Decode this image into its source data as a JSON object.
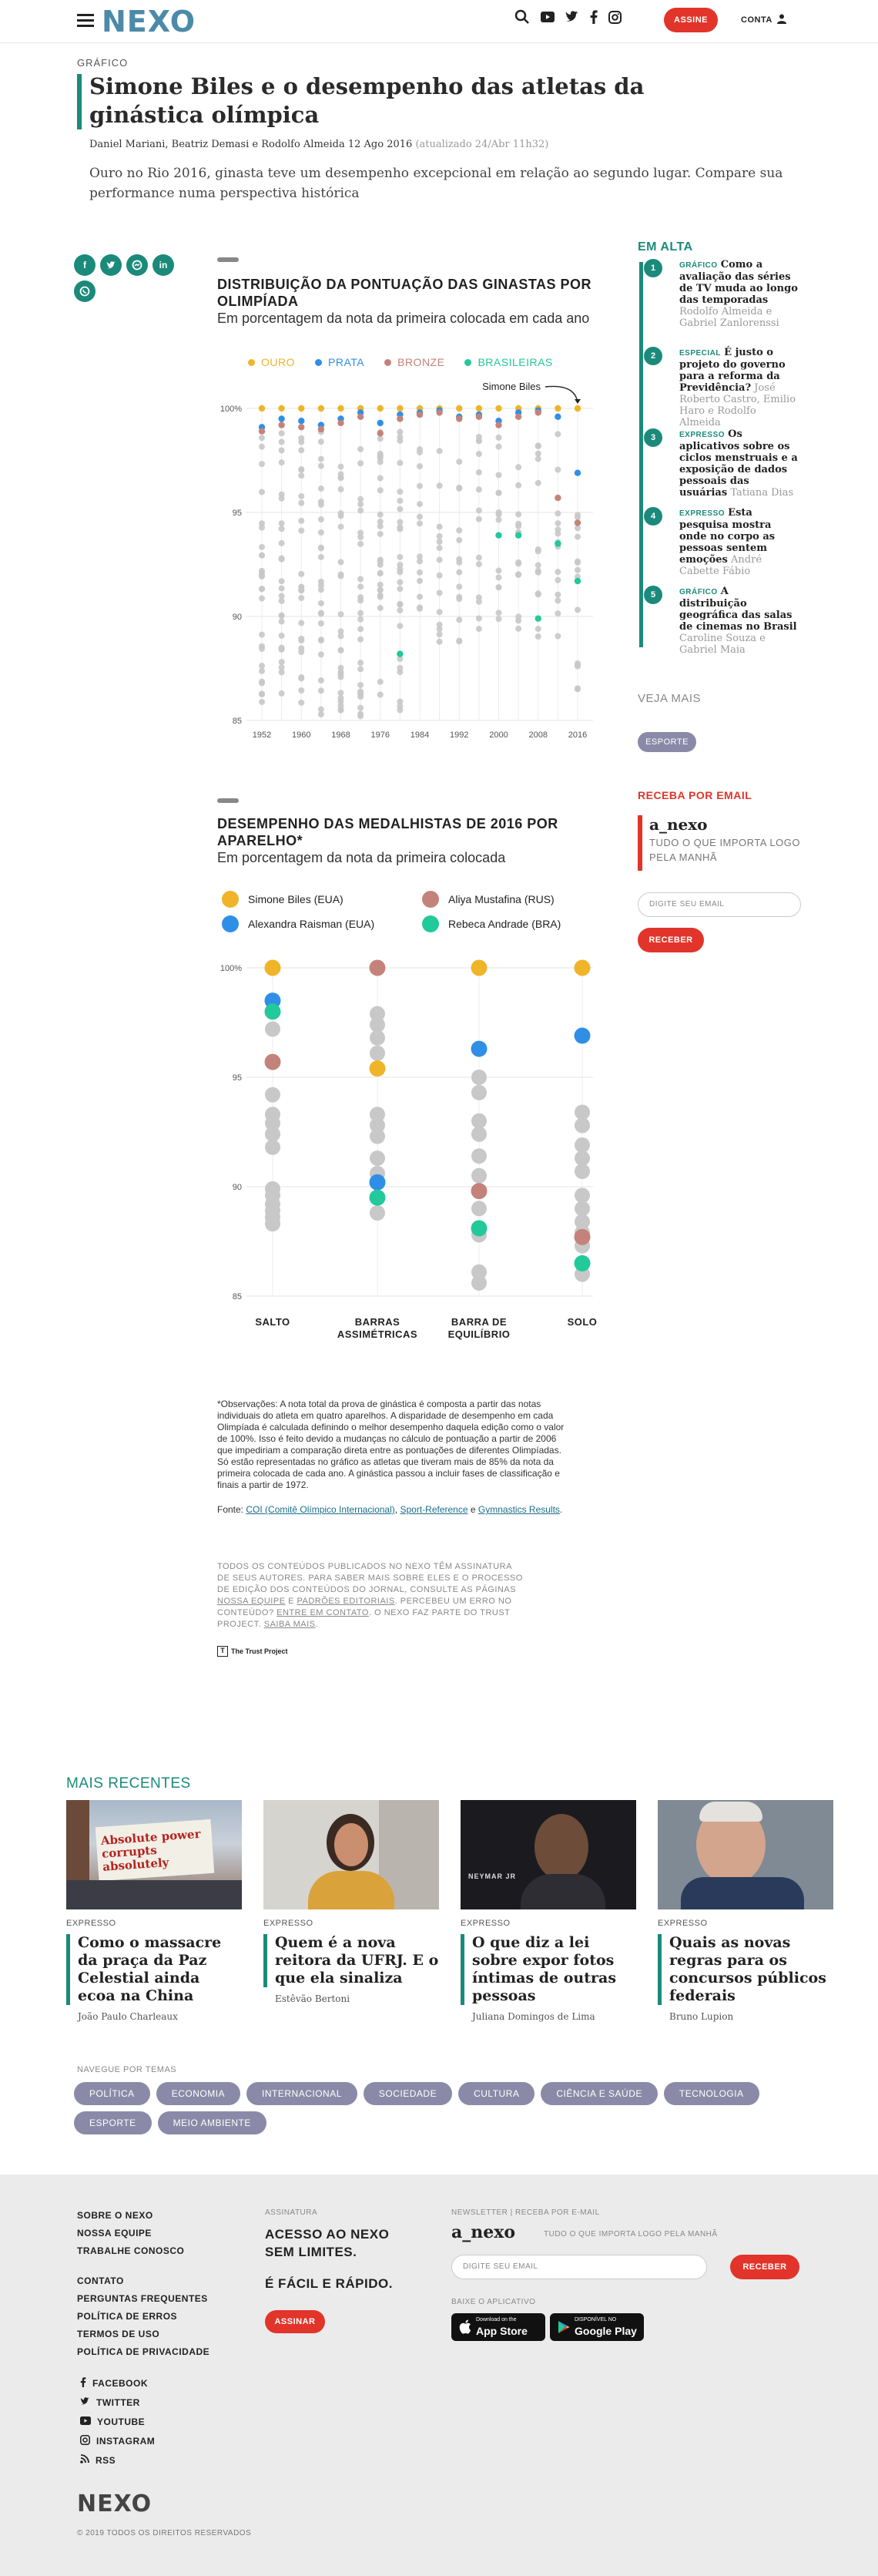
{
  "header": {
    "logo": "NEXO",
    "assine_label": "ASSINE",
    "conta_label": "CONTA",
    "icons": [
      "search-icon",
      "youtube-icon",
      "twitter-icon",
      "facebook-icon",
      "instagram-icon",
      "user-icon"
    ]
  },
  "article": {
    "kicker": "GRÁFICO",
    "title": "Simone Biles e o desempenho das atletas da ginástica olímpica",
    "authors": "Daniel Mariani, Beatriz Demasi e Rodolfo Almeida",
    "date": "12 Ago 2016",
    "updated": "(atualizado 24/Abr 11h32)",
    "lede": "Ouro no Rio 2016, ginasta teve um desempenho excepcional em relação ao segundo lugar. Compare sua performance numa perspectiva histórica"
  },
  "share": [
    "facebook-icon",
    "twitter-icon",
    "messenger-icon",
    "linkedin-icon",
    "whatsapp-icon"
  ],
  "colors": {
    "teal": "#1b8a7a",
    "red": "#e2342a",
    "ouro": "#f0b429",
    "prata": "#2f8fe6",
    "bronze": "#c4837a",
    "brasileiras": "#22c99a",
    "other": "#c8c8c8"
  },
  "chart1": {
    "title": "DISTRIBUIÇÃO DA PONTUAÇÃO DAS GINASTAS POR OLIMPÍADA",
    "subtitle": "Em porcentagem da nota da primeira colocada em cada ano",
    "legend": [
      "OURO",
      "PRATA",
      "BRONZE",
      "BRASILEIRAS"
    ],
    "annotation": "Simone Biles"
  },
  "chart2": {
    "title": "DESEMPENHO DAS MEDALHISTAS DE 2016 POR APARELHO*",
    "subtitle": "Em porcentagem da nota da primeira colocada",
    "legend": [
      "Simone Biles (EUA)",
      "Aliya Mustafina (RUS)",
      "Alexandra Raisman (EUA)",
      "Rebeca Andrade (BRA)"
    ]
  },
  "chart_data": [
    {
      "type": "scatter",
      "title": "DISTRIBUIÇÃO DA PONTUAÇÃO DAS GINASTAS POR OLIMPÍADA",
      "subtitle": "Em porcentagem da nota da primeira colocada em cada ano",
      "x": [
        1952,
        1956,
        1960,
        1964,
        1968,
        1972,
        1976,
        1980,
        1984,
        1988,
        1992,
        1996,
        2000,
        2004,
        2008,
        2012,
        2016
      ],
      "xticks": [
        1952,
        1960,
        1968,
        1976,
        1984,
        1992,
        2000,
        2008,
        2016
      ],
      "ylim": [
        85,
        100
      ],
      "yticks": [
        "85",
        "90",
        "95",
        "100%"
      ],
      "grid": true,
      "legend_position": "top",
      "series": [
        {
          "name": "OURO",
          "values": [
            100,
            100,
            100,
            100,
            100,
            100,
            100,
            100,
            100,
            100,
            100,
            100,
            100,
            100,
            100,
            100,
            100
          ]
        },
        {
          "name": "PRATA",
          "values": [
            99.1,
            99.5,
            99.4,
            99.2,
            99.5,
            99.8,
            99.3,
            99.7,
            99.8,
            99.9,
            99.6,
            99.7,
            99.4,
            99.8,
            99.9,
            99.6,
            96.9
          ]
        },
        {
          "name": "BRONZE",
          "values": [
            98.9,
            99.2,
            99.1,
            99.0,
            99.3,
            99.6,
            98.8,
            99.5,
            99.7,
            99.8,
            99.5,
            99.6,
            99.2,
            99.6,
            99.8,
            95.7,
            94.5
          ]
        },
        {
          "name": "BRASILEIRAS",
          "values": [
            null,
            null,
            null,
            null,
            null,
            null,
            null,
            88.2,
            null,
            null,
            null,
            null,
            93.9,
            93.9,
            89.9,
            93.5,
            91.7
          ]
        }
      ]
    },
    {
      "type": "scatter",
      "title": "DESEMPENHO DAS MEDALHISTAS DE 2016 POR APARELHO*",
      "subtitle": "Em porcentagem da nota da primeira colocada",
      "categories": [
        "SALTO",
        "BARRAS ASSIMÉTRICAS",
        "BARRA DE EQUILÍBRIO",
        "SOLO"
      ],
      "ylim": [
        85,
        100
      ],
      "yticks": [
        "85",
        "90",
        "95",
        "100%"
      ],
      "grid": true,
      "legend_position": "top",
      "series": [
        {
          "name": "Simone Biles (EUA)",
          "values": [
            100,
            95.4,
            100,
            100
          ]
        },
        {
          "name": "Aliya Mustafina (RUS)",
          "values": [
            95.7,
            100,
            89.8,
            87.7
          ]
        },
        {
          "name": "Alexandra Raisman (EUA)",
          "values": [
            98.5,
            90.2,
            96.3,
            96.9
          ]
        },
        {
          "name": "Rebeca Andrade (BRA)",
          "values": [
            98.0,
            89.5,
            88.1,
            86.5
          ]
        }
      ],
      "others": [
        [
          97.2,
          94.2,
          93.3,
          92.9,
          92.4,
          91.8,
          89.9,
          89.6,
          89.2,
          88.9,
          88.6,
          88.3
        ],
        [
          97.9,
          97.4,
          96.8,
          96.1,
          93.3,
          92.8,
          92.3,
          91.3,
          90.6,
          88.8
        ],
        [
          95.0,
          94.3,
          93.0,
          92.4,
          91.4,
          90.5,
          89.0,
          87.8,
          86.1,
          85.6
        ],
        [
          93.4,
          92.8,
          91.9,
          91.3,
          90.7,
          89.6,
          89.0,
          88.4,
          87.9,
          87.3,
          86.0
        ]
      ]
    }
  ],
  "notes": {
    "obs": "*Observações: A nota total da prova de ginástica é composta a partir das notas individuais do atleta em quatro aparelhos. A disparidade de desempenho em cada Olimpíada é calculada definindo o melhor desempenho daquela edição como o valor de 100%. Isso é feito devido a mudanças no cálculo de pontuação a partir de 2006 que impediriam a comparação direta entre as pontuações de diferentes Olimpíadas. Só estão representadas no gráfico as atletas que tiveram mais de 85% da nota da primeira colocada de cada ano. A ginástica passou a incluir fases de classificação e finais a partir de 1972.",
    "fonte_label": "Fonte:",
    "fonte_1": "COI (Comitê Olímpico Internacional)",
    "fonte_sep": ",",
    "fonte_2": "Sport-Reference",
    "fonte_and": "e",
    "fonte_3": "Gymnastics Results",
    "trust_1": "TODOS OS CONTEÚDOS PUBLICADOS NO NEXO TÊM ASSINATURA DE SEUS AUTORES. PARA SABER MAIS SOBRE ELES E O PROCESSO DE EDIÇÃO DOS CONTEÚDOS DO JORNAL, CONSULTE AS PÁGINAS",
    "trust_l1": "NOSSA EQUIPE",
    "trust_e": "E",
    "trust_l2": "PADRÕES EDITORIAIS",
    "trust_2": ". PERCEBEU UM ERRO NO CONTEÚDO?",
    "trust_l3": "ENTRE EM CONTATO",
    "trust_3": ". O NEXO FAZ PARTE DO TRUST PROJECT.",
    "trust_l4": "SAIBA MAIS",
    "trust_end": ".",
    "trust_logo": "The Trust Project"
  },
  "sidebar": {
    "heading": "EM ALTA",
    "items": [
      {
        "num": "1",
        "kind": "GRÁFICO",
        "title": "Como a avaliação das séries de TV muda ao longo das temporadas",
        "author": "Rodolfo Almeida e Gabriel Zanlorenssi"
      },
      {
        "num": "2",
        "kind": "ESPECIAL",
        "title": "É justo o projeto do governo para a reforma da Previdência?",
        "author": "José Roberto Castro, Emilio Haro e Rodolfo Almeida"
      },
      {
        "num": "3",
        "kind": "EXPRESSO",
        "title": "Os aplicativos sobre os ciclos menstruais e a exposição de dados pessoais das usuárias",
        "author": "Tatiana Dias"
      },
      {
        "num": "4",
        "kind": "EXPRESSO",
        "title": "Esta pesquisa mostra onde no corpo as pessoas sentem emoções",
        "author": "André Cabette Fábio"
      },
      {
        "num": "5",
        "kind": "GRÁFICO",
        "title": "A distribuição geográfica das salas de cinemas no Brasil",
        "author": "Caroline Souza e Gabriel Maia"
      }
    ],
    "veja_mais": "VEJA MAIS",
    "esporte": "ESPORTE",
    "receba_heading": "RECEBA POR EMAIL",
    "newsletter_logo": "a_nexo",
    "newsletter_tag": "TUDO O QUE IMPORTA LOGO PELA MANHÃ",
    "email_placeholder": "DIGITE SEU EMAIL",
    "receber": "RECEBER"
  },
  "mais_recentes": {
    "heading": "MAIS RECENTES",
    "cards": [
      {
        "kind": "EXPRESSO",
        "title": "Como o massacre da praça da Paz Celestial ainda ecoa na China",
        "author": "João Paulo Charleaux",
        "img_text": "Absolute power corrupts absolutely"
      },
      {
        "kind": "EXPRESSO",
        "title": "Quem é a nova reitora da UFRJ. E o que ela sinaliza",
        "author": "Estêvão Bertoni"
      },
      {
        "kind": "EXPRESSO",
        "title": "O que diz a lei sobre expor fotos íntimas de outras pessoas",
        "author": "Juliana Domingos de Lima",
        "img_text": "NEYMAR JR"
      },
      {
        "kind": "EXPRESSO",
        "title": "Quais as novas regras para os concursos públicos federais",
        "author": "Bruno Lupion"
      }
    ]
  },
  "temas": {
    "heading": "NAVEGUE POR TEMAS",
    "items": [
      "POLÍTICA",
      "ECONOMIA",
      "INTERNACIONAL",
      "SOCIEDADE",
      "CULTURA",
      "CIÊNCIA E SAÚDE",
      "TECNOLOGIA",
      "ESPORTE",
      "MEIO AMBIENTE"
    ]
  },
  "footer": {
    "links1": [
      "SOBRE O NEXO",
      "NOSSA EQUIPE",
      "TRABALHE CONOSCO"
    ],
    "links2": [
      "CONTATO",
      "PERGUNTAS FREQUENTES",
      "POLÍTICA DE ERROS",
      "TERMOS DE USO",
      "POLÍTICA DE PRIVACIDADE"
    ],
    "social": [
      "FACEBOOK",
      "TWITTER",
      "YOUTUBE",
      "INSTAGRAM",
      "RSS"
    ],
    "assinatura_h": "ASSINATURA",
    "assinatura_t1": "ACESSO AO NEXO SEM LIMITES.",
    "assinatura_t2": "É FÁCIL E RÁPIDO.",
    "assinar": "ASSINAR",
    "news_h": "NEWSLETTER | RECEBA POR E-MAIL",
    "news_logo": "a_nexo",
    "news_tag": "TUDO O QUE IMPORTA LOGO PELA MANHÃ",
    "news_placeholder": "DIGITE SEU EMAIL",
    "receber": "RECEBER",
    "app_h": "BAIXE O APLICATIVO",
    "appstore_1": "Download on the",
    "appstore_2": "App Store",
    "gplay_1": "DISPONÍVEL NO",
    "gplay_2": "Google Play",
    "logo": "NEXO",
    "copyright": "© 2019 TODOS OS DIREITOS RESERVADOS"
  }
}
